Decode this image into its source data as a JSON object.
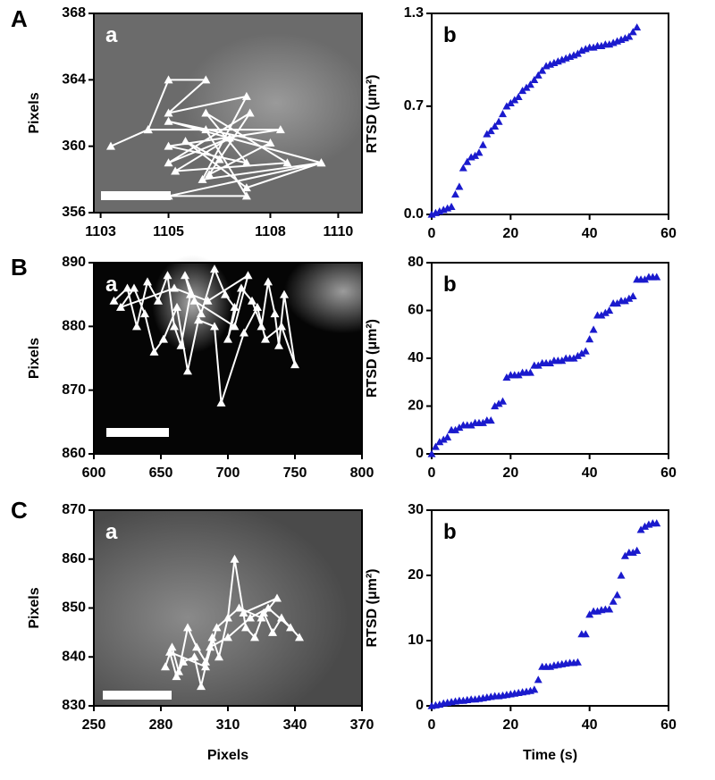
{
  "panel_letters": [
    "A",
    "B",
    "C"
  ],
  "chart_data": [
    {
      "type": "line",
      "label": "a",
      "y_label": "Pixels",
      "color": "#ffffff",
      "marker": "triangle",
      "x": [
        1103.3,
        1104.4,
        1105.0,
        1106.1,
        1105.0,
        1107.3,
        1106.0,
        1109.5,
        1105.0,
        1107.3,
        1106.1,
        1104.4,
        1108.3,
        1105.0,
        1107.3,
        1106.1,
        1108.5,
        1105.2,
        1106.8,
        1105.0,
        1107.4,
        1106.2,
        1108.0,
        1105.0,
        1109.5,
        1107.3,
        1105.5,
        1106.5
      ],
      "values": [
        360,
        361,
        364,
        364,
        362,
        363,
        358,
        359,
        357,
        357,
        361,
        361,
        361,
        360,
        359,
        362,
        359,
        358.5,
        360.5,
        359,
        362,
        358.3,
        360.2,
        361.5,
        359,
        357.5,
        360.3,
        359.2
      ],
      "xlim": [
        1102.8,
        1110.7
      ],
      "xticks": [
        1103,
        1105,
        1108,
        1110
      ],
      "ylim": [
        356,
        368
      ],
      "yticks": [
        356,
        360,
        364,
        368
      ]
    },
    {
      "type": "scatter",
      "label": "b",
      "y_label": "RTSD (μm²)",
      "color": "#1a1acd",
      "x": [
        0,
        1,
        2,
        3,
        4,
        5,
        6,
        7,
        8,
        9,
        10,
        11,
        12,
        13,
        14,
        15,
        16,
        17,
        18,
        19,
        20,
        21,
        22,
        23,
        24,
        25,
        26,
        27,
        28,
        29,
        30,
        31,
        32,
        33,
        34,
        35,
        36,
        37,
        38,
        39,
        40,
        41,
        42,
        43,
        44,
        45,
        46,
        47,
        48,
        49,
        50,
        51,
        52
      ],
      "values": [
        0,
        0.01,
        0.02,
        0.03,
        0.04,
        0.05,
        0.13,
        0.18,
        0.3,
        0.34,
        0.37,
        0.38,
        0.4,
        0.45,
        0.52,
        0.54,
        0.57,
        0.6,
        0.65,
        0.7,
        0.72,
        0.74,
        0.76,
        0.8,
        0.82,
        0.84,
        0.87,
        0.9,
        0.93,
        0.96,
        0.97,
        0.98,
        0.99,
        1.0,
        1.01,
        1.02,
        1.03,
        1.04,
        1.06,
        1.07,
        1.08,
        1.08,
        1.09,
        1.09,
        1.1,
        1.1,
        1.11,
        1.12,
        1.13,
        1.14,
        1.15,
        1.18,
        1.21
      ],
      "xlim": [
        0,
        60
      ],
      "xticks": [
        0,
        20,
        40,
        60
      ],
      "ylim": [
        0,
        1.3
      ],
      "yticks": [
        {
          "value": 0,
          "label": "0.0"
        },
        0.7,
        1.3
      ]
    },
    {
      "type": "line",
      "label": "a",
      "y_label": "Pixels",
      "color": "#ffffff",
      "marker": "triangle",
      "x": [
        615,
        625,
        632,
        640,
        648,
        655,
        660,
        665,
        672,
        668,
        680,
        690,
        698,
        705,
        700,
        710,
        718,
        725,
        730,
        735,
        738,
        742,
        750,
        740,
        728,
        722,
        712,
        695,
        690,
        678,
        670,
        662,
        652,
        645,
        638,
        630,
        620,
        660,
        685,
        715,
        705,
        675
      ],
      "values": [
        884,
        886,
        880,
        887,
        884,
        888,
        880,
        877,
        885,
        888,
        882,
        889,
        885,
        883,
        878,
        886,
        884,
        880,
        887,
        882,
        877,
        885,
        874,
        880,
        878,
        883,
        879,
        868,
        880,
        881,
        873,
        883,
        878,
        876,
        882,
        886,
        883,
        886,
        884,
        888,
        880,
        884
      ],
      "xlim": [
        600,
        800
      ],
      "xticks": [
        600,
        650,
        700,
        750,
        800
      ],
      "ylim": [
        860,
        890
      ],
      "yticks": [
        860,
        870,
        880,
        890
      ]
    },
    {
      "type": "scatter",
      "label": "b",
      "y_label": "RTSD (μm²)",
      "color": "#1a1acd",
      "x": [
        0,
        1,
        2,
        3,
        4,
        5,
        6,
        7,
        8,
        9,
        10,
        11,
        12,
        13,
        14,
        15,
        16,
        17,
        18,
        19,
        20,
        21,
        22,
        23,
        24,
        25,
        26,
        27,
        28,
        29,
        30,
        31,
        32,
        33,
        34,
        35,
        36,
        37,
        38,
        39,
        40,
        41,
        42,
        43,
        44,
        45,
        46,
        47,
        48,
        49,
        50,
        51,
        52,
        53,
        54,
        55,
        56,
        57
      ],
      "values": [
        0,
        3,
        5,
        6,
        7,
        10,
        10,
        11,
        12,
        12,
        12,
        13,
        13,
        13,
        14,
        14,
        20,
        21,
        22,
        32,
        33,
        33,
        33,
        34,
        34,
        34,
        37,
        37,
        38,
        38,
        38,
        39,
        39,
        39,
        40,
        40,
        40,
        41,
        42,
        43,
        48,
        52,
        58,
        58,
        59,
        60,
        63,
        63,
        64,
        64,
        65,
        66,
        73,
        73,
        73,
        74,
        74,
        74
      ],
      "xlim": [
        0,
        60
      ],
      "xticks": [
        0,
        20,
        40,
        60
      ],
      "ylim": [
        0,
        80
      ],
      "yticks": [
        0,
        20,
        40,
        60,
        80
      ]
    },
    {
      "type": "line",
      "label": "a",
      "x_label": "Pixels",
      "y_label": "Pixels",
      "color": "#ffffff",
      "marker": "triangle",
      "x": [
        282,
        285,
        288,
        292,
        296,
        300,
        303,
        306,
        310,
        313,
        318,
        322,
        326,
        330,
        334,
        342,
        338,
        328,
        320,
        310,
        302,
        298,
        295,
        290,
        287,
        284,
        300,
        305,
        315,
        325,
        332,
        317
      ],
      "values": [
        838,
        842,
        837,
        846,
        842,
        839,
        844,
        840,
        848,
        860,
        846,
        844,
        849,
        845,
        848,
        844,
        846,
        850,
        848,
        844,
        842,
        834,
        840,
        839,
        836,
        841,
        838,
        846,
        850,
        848,
        852,
        849
      ],
      "xlim": [
        250,
        370
      ],
      "xticks": [
        250,
        280,
        310,
        340,
        370
      ],
      "ylim": [
        830,
        870
      ],
      "yticks": [
        830,
        840,
        850,
        860,
        870
      ]
    },
    {
      "type": "scatter",
      "label": "b",
      "x_label": "Time (s)",
      "y_label": "RTSD (μm²)",
      "color": "#1a1acd",
      "x": [
        0,
        1,
        2,
        3,
        4,
        5,
        6,
        7,
        8,
        9,
        10,
        11,
        12,
        13,
        14,
        15,
        16,
        17,
        18,
        19,
        20,
        21,
        22,
        23,
        24,
        25,
        26,
        27,
        28,
        29,
        30,
        31,
        32,
        33,
        34,
        35,
        36,
        37,
        38,
        39,
        40,
        41,
        42,
        43,
        44,
        45,
        46,
        47,
        48,
        49,
        50,
        51,
        52,
        53,
        54,
        55,
        56,
        57
      ],
      "values": [
        0,
        0.1,
        0.2,
        0.4,
        0.5,
        0.6,
        0.7,
        0.8,
        0.8,
        0.9,
        1.0,
        1.0,
        1.1,
        1.2,
        1.3,
        1.4,
        1.5,
        1.5,
        1.6,
        1.7,
        1.8,
        1.9,
        2.0,
        2.1,
        2.2,
        2.3,
        2.5,
        4,
        6,
        6,
        6,
        6.2,
        6.3,
        6.4,
        6.5,
        6.6,
        6.6,
        6.7,
        11,
        11,
        14,
        14.5,
        14.5,
        14.7,
        14.8,
        14.8,
        16,
        17,
        20,
        23,
        23.5,
        23.5,
        23.8,
        27,
        27.5,
        27.8,
        28,
        28
      ],
      "xlim": [
        0,
        60
      ],
      "xticks": [
        0,
        20,
        40,
        60
      ],
      "ylim": [
        0,
        30
      ],
      "yticks": [
        0,
        10,
        20,
        30
      ]
    }
  ]
}
